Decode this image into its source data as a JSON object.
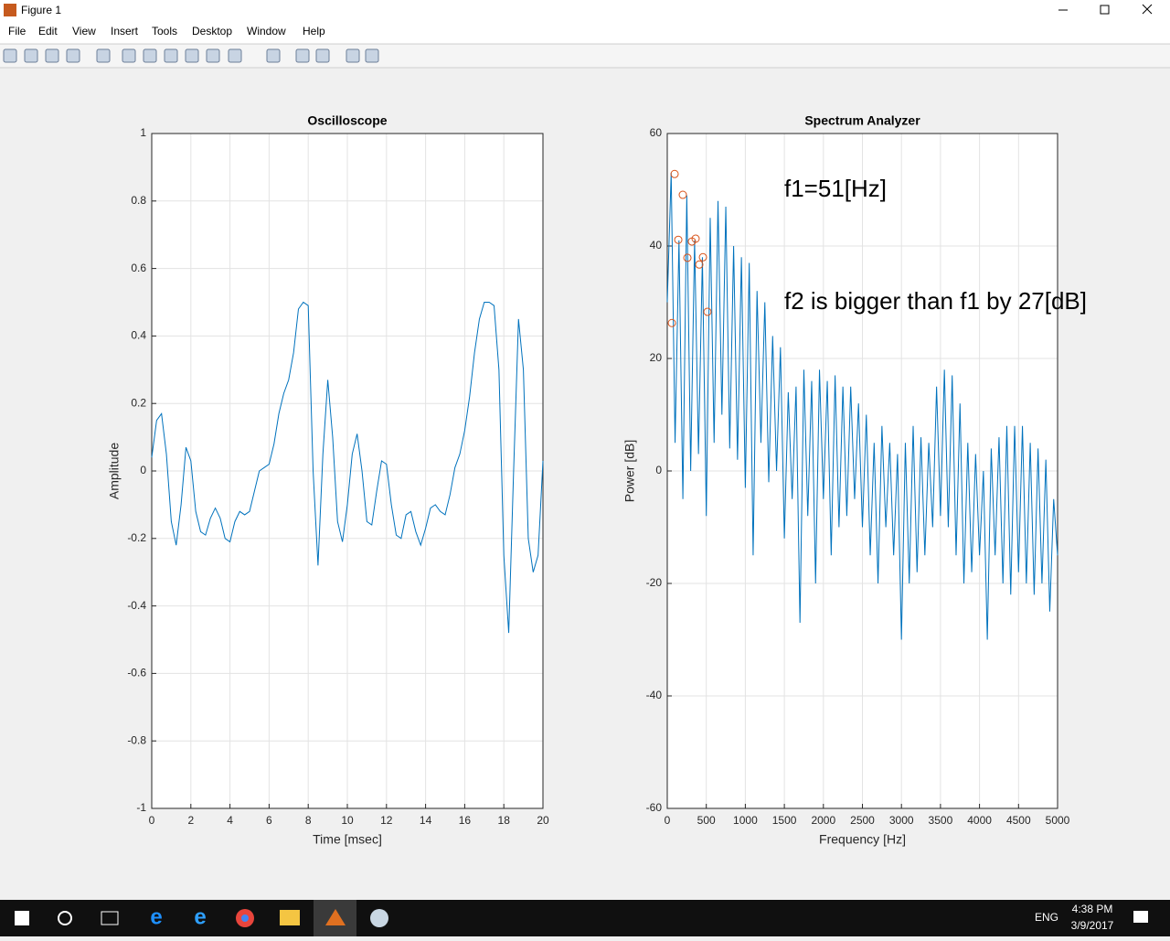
{
  "window": {
    "title": "Figure 1"
  },
  "menu": [
    "File",
    "Edit",
    "View",
    "Insert",
    "Tools",
    "Desktop",
    "Window",
    "Help"
  ],
  "chart_data": [
    {
      "type": "line",
      "title": "Oscilloscope",
      "x_label": "Time [msec]",
      "y_label": "Amplitude",
      "x": [
        0,
        0.25,
        0.5,
        0.75,
        1,
        1.25,
        1.5,
        1.75,
        2,
        2.25,
        2.5,
        2.75,
        3,
        3.25,
        3.5,
        3.75,
        4,
        4.25,
        4.5,
        4.75,
        5,
        5.25,
        5.5,
        5.75,
        6,
        6.25,
        6.5,
        6.75,
        7,
        7.25,
        7.5,
        7.75,
        8,
        8.25,
        8.5,
        8.75,
        9,
        9.25,
        9.5,
        9.75,
        10,
        10.25,
        10.5,
        10.75,
        11,
        11.25,
        11.5,
        11.75,
        12,
        12.25,
        12.5,
        12.75,
        13,
        13.25,
        13.5,
        13.75,
        14,
        14.25,
        14.5,
        14.75,
        15,
        15.25,
        15.5,
        15.75,
        16,
        16.25,
        16.5,
        16.75,
        17,
        17.25,
        17.5,
        17.75,
        18,
        18.25,
        18.5,
        18.75,
        19,
        19.25,
        19.5,
        19.75,
        20
      ],
      "series": [
        {
          "color": "#0072bd",
          "values": [
            0.04,
            0.15,
            0.17,
            0.05,
            -0.15,
            -0.22,
            -0.1,
            0.07,
            0.03,
            -0.12,
            -0.18,
            -0.19,
            -0.14,
            -0.11,
            -0.14,
            -0.2,
            -0.21,
            -0.15,
            -0.12,
            -0.13,
            -0.12,
            -0.06,
            0,
            0.01,
            0.02,
            0.08,
            0.17,
            0.23,
            0.27,
            0.35,
            0.48,
            0.5,
            0.49,
            0,
            -0.28,
            0.05,
            0.27,
            0.1,
            -0.15,
            -0.21,
            -0.1,
            0.05,
            0.11,
            0,
            -0.15,
            -0.16,
            -0.06,
            0.03,
            0.02,
            -0.1,
            -0.19,
            -0.2,
            -0.13,
            -0.12,
            -0.18,
            -0.22,
            -0.17,
            -0.11,
            -0.1,
            -0.12,
            -0.13,
            -0.07,
            0.01,
            0.05,
            0.12,
            0.22,
            0.35,
            0.45,
            0.5,
            0.5,
            0.49,
            0.3,
            -0.25,
            -0.48,
            0,
            0.45,
            0.3,
            -0.2,
            -0.3,
            -0.25,
            0.03
          ]
        }
      ],
      "xlim": [
        0,
        20
      ],
      "xticks": [
        0,
        2,
        4,
        6,
        8,
        10,
        12,
        14,
        16,
        18,
        20
      ],
      "ylim": [
        -1,
        1
      ],
      "yticks": [
        -1,
        -0.8,
        -0.6,
        -0.4,
        -0.2,
        0,
        0.2,
        0.4,
        0.6,
        0.8,
        1
      ],
      "grid": true
    },
    {
      "type": "line",
      "title": "Spectrum Analyzer",
      "x_label": "Frequency [Hz]",
      "y_label": "Power [dB]",
      "x": [
        0,
        50,
        100,
        150,
        200,
        250,
        300,
        350,
        400,
        450,
        500,
        550,
        600,
        650,
        700,
        750,
        800,
        850,
        900,
        950,
        1000,
        1050,
        1100,
        1150,
        1200,
        1250,
        1300,
        1350,
        1400,
        1450,
        1500,
        1550,
        1600,
        1650,
        1700,
        1750,
        1800,
        1850,
        1900,
        1950,
        2000,
        2050,
        2100,
        2150,
        2200,
        2250,
        2300,
        2350,
        2400,
        2450,
        2500,
        2550,
        2600,
        2650,
        2700,
        2750,
        2800,
        2850,
        2900,
        2950,
        3000,
        3050,
        3100,
        3150,
        3200,
        3250,
        3300,
        3350,
        3400,
        3450,
        3500,
        3550,
        3600,
        3650,
        3700,
        3750,
        3800,
        3850,
        3900,
        3950,
        4000,
        4050,
        4100,
        4150,
        4200,
        4250,
        4300,
        4350,
        4400,
        4450,
        4500,
        4550,
        4600,
        4650,
        4700,
        4750,
        4800,
        4850,
        4900,
        4950,
        5000
      ],
      "series": [
        {
          "color": "#0072bd",
          "values": [
            30,
            53,
            5,
            41,
            -5,
            49,
            0,
            41,
            3,
            38,
            -8,
            45,
            5,
            48,
            10,
            47,
            4,
            40,
            2,
            38,
            -3,
            37,
            -15,
            32,
            5,
            30,
            -2,
            24,
            0,
            22,
            -12,
            14,
            -5,
            15,
            -27,
            18,
            -8,
            16,
            -20,
            18,
            -5,
            16,
            -15,
            17,
            -10,
            15,
            -8,
            15,
            -5,
            12,
            -10,
            10,
            -15,
            5,
            -20,
            8,
            -10,
            5,
            -15,
            3,
            -30,
            5,
            -20,
            8,
            -18,
            6,
            -15,
            5,
            -10,
            15,
            -8,
            18,
            -10,
            17,
            -15,
            12,
            -20,
            5,
            -18,
            3,
            -15,
            0,
            -30,
            4,
            -15,
            6,
            -20,
            8,
            -22,
            8,
            -18,
            8,
            -20,
            5,
            -22,
            4,
            -20,
            2,
            -25,
            -5,
            -15
          ]
        }
      ],
      "peaks": {
        "color": "#d95319",
        "x": [
          94,
          199,
          141,
          258,
          316,
          363,
          410,
          457,
          59,
          515
        ],
        "values": [
          52.8,
          49.1,
          41.1,
          37.9,
          40.8,
          41.3,
          36.7,
          38,
          26.3,
          28.3
        ]
      },
      "annotations": [
        "f1=51[Hz]",
        "f2 is bigger than f1 by 27[dB]"
      ],
      "xlim": [
        0,
        5000
      ],
      "xticks": [
        0,
        500,
        1000,
        1500,
        2000,
        2500,
        3000,
        3500,
        4000,
        4500,
        5000
      ],
      "ylim": [
        -60,
        60
      ],
      "yticks": [
        -60,
        -40,
        -20,
        0,
        20,
        40,
        60
      ],
      "grid": true
    }
  ],
  "taskbar": {
    "language": "ENG",
    "time": "4:38 PM",
    "date": "3/9/2017"
  }
}
